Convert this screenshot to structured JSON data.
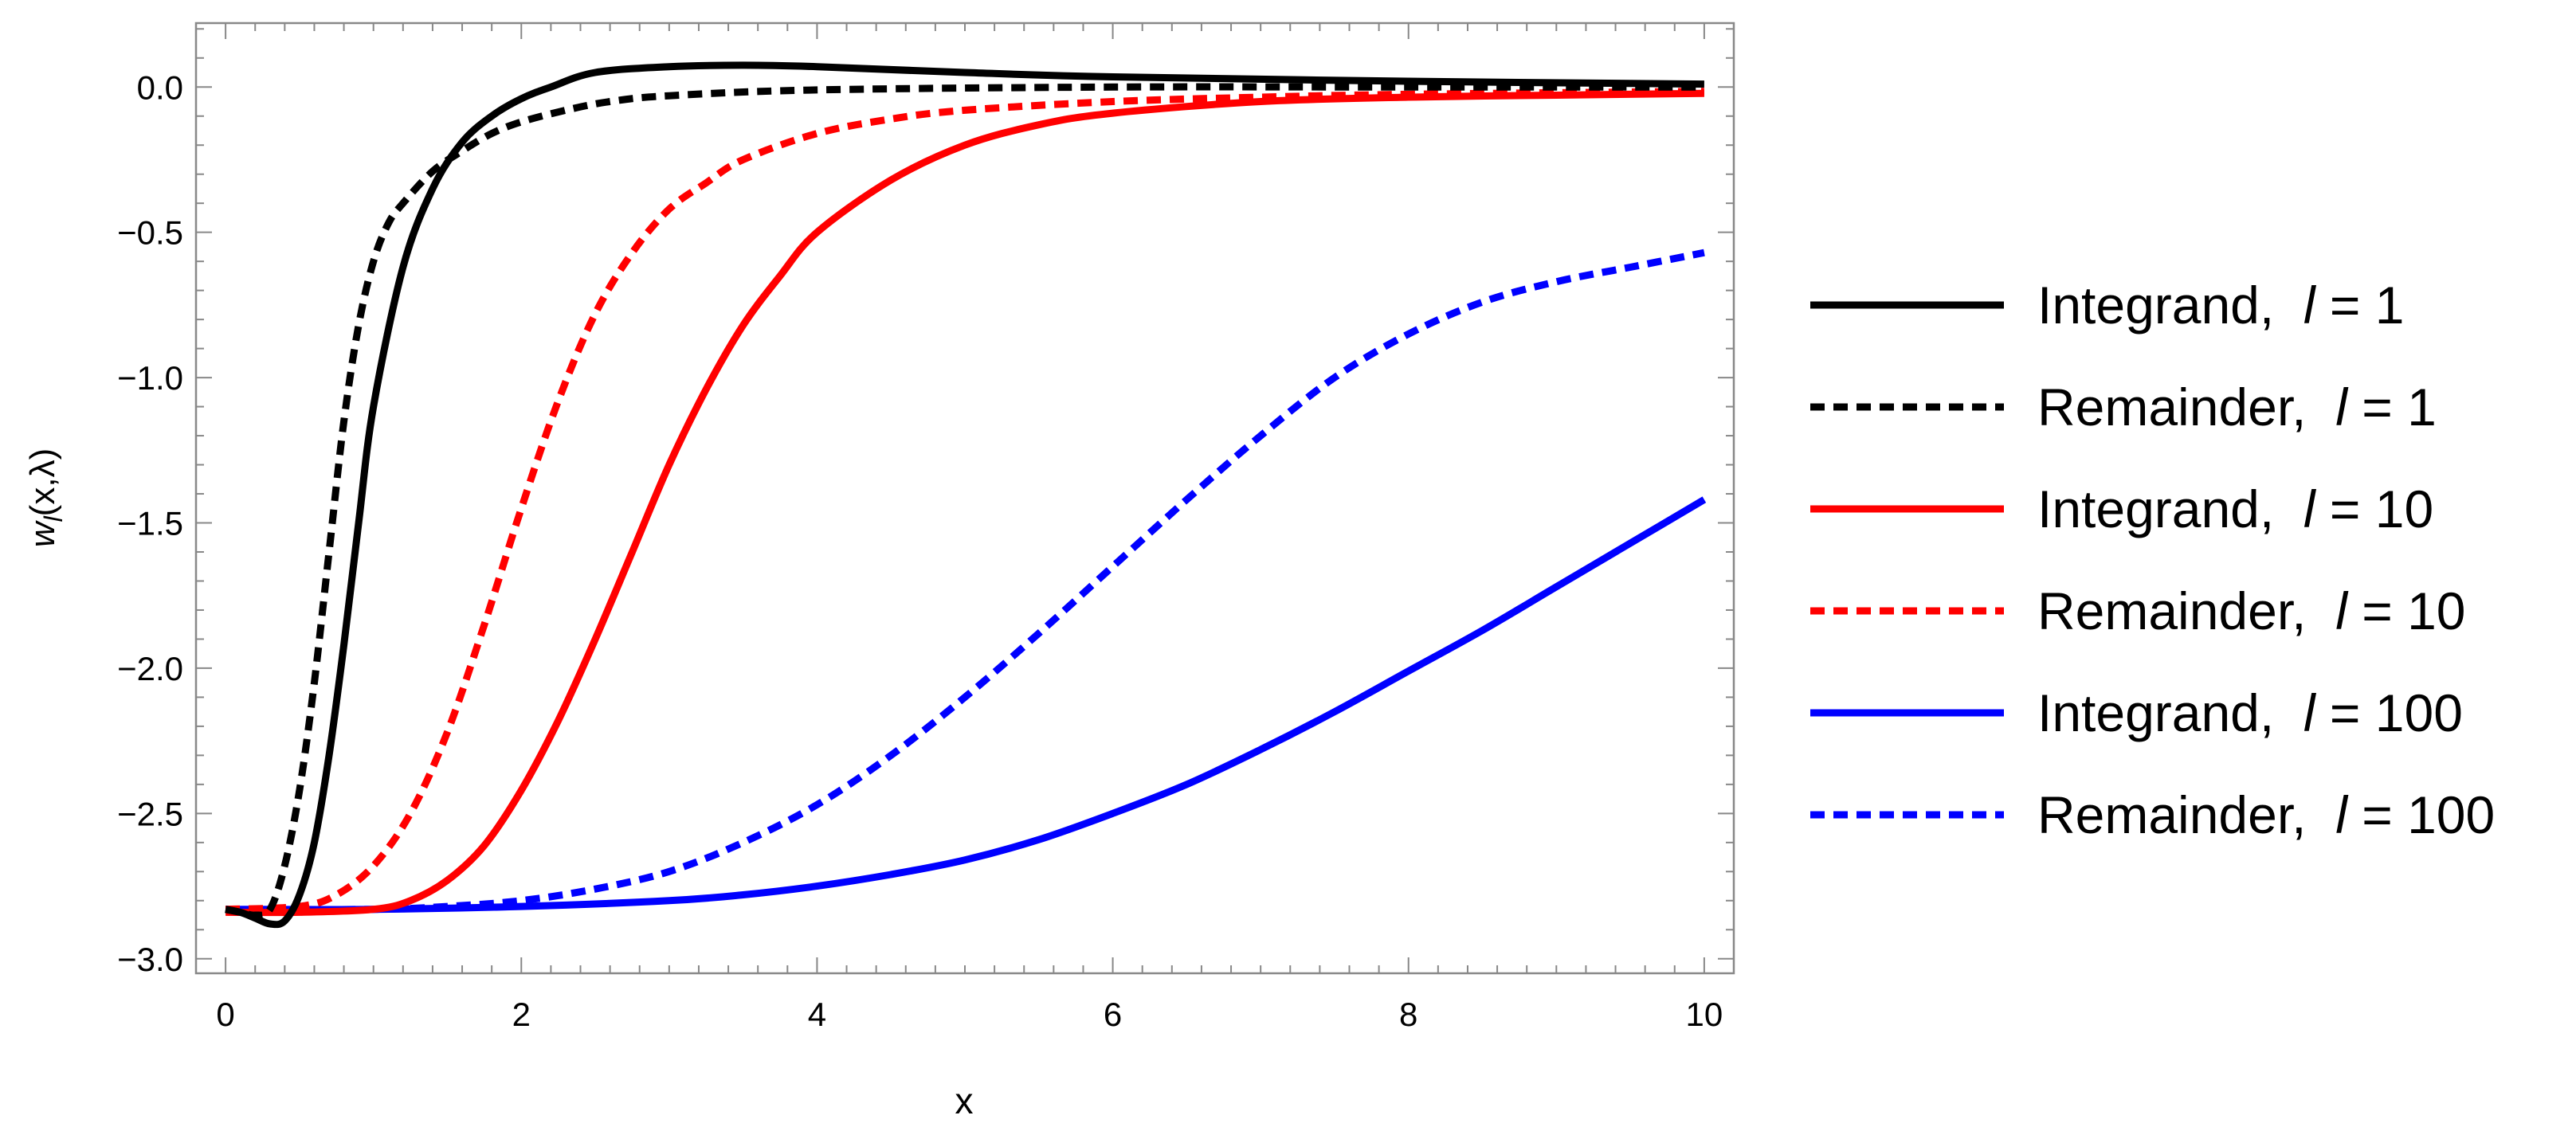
{
  "chart_data": {
    "type": "line",
    "title": "",
    "xlabel": "x",
    "ylabel_parts": {
      "w": "w",
      "sub": "l",
      "args": "(x,λ)"
    },
    "xlim": [
      -0.2,
      10.2
    ],
    "ylim": [
      -3.05,
      0.22
    ],
    "x_ticks": [
      0,
      2,
      4,
      6,
      8,
      10
    ],
    "x_tick_labels": [
      "0",
      "2",
      "4",
      "6",
      "8",
      "10"
    ],
    "y_ticks": [
      0.0,
      -0.5,
      -1.0,
      -1.5,
      -2.0,
      -2.5,
      -3.0
    ],
    "y_tick_labels": [
      "0.0",
      "−0.5",
      "−1.0",
      "−1.5",
      "−2.0",
      "−2.5",
      "−3.0"
    ],
    "grid": false,
    "legend_position": "right",
    "series": [
      {
        "name": "Integrand,",
        "l_value": "1",
        "color": "#000000",
        "dash": false,
        "x": [
          0,
          0.1,
          0.2,
          0.3,
          0.4,
          0.5,
          0.6,
          0.7,
          0.8,
          0.9,
          1.0,
          1.2,
          1.4,
          1.6,
          1.8,
          2.0,
          2.2,
          2.5,
          3.0,
          3.5,
          4.0,
          5.0,
          6.0,
          8.0,
          10.0
        ],
        "y": [
          -2.83,
          -2.84,
          -2.86,
          -2.88,
          -2.87,
          -2.78,
          -2.6,
          -2.3,
          -1.92,
          -1.5,
          -1.1,
          -0.62,
          -0.35,
          -0.19,
          -0.1,
          -0.04,
          0.0,
          0.05,
          0.07,
          0.075,
          0.07,
          0.05,
          0.035,
          0.02,
          0.01
        ]
      },
      {
        "name": "Remainder,",
        "l_value": "1",
        "color": "#000000",
        "dash": true,
        "x": [
          0,
          0.1,
          0.2,
          0.3,
          0.4,
          0.5,
          0.6,
          0.7,
          0.8,
          0.9,
          1.0,
          1.1,
          1.2,
          1.4,
          1.6,
          1.8,
          2.0,
          2.3,
          2.6,
          3.0,
          4.0,
          6.0,
          8.0,
          10.0
        ],
        "y": [
          -2.83,
          -2.84,
          -2.85,
          -2.83,
          -2.68,
          -2.42,
          -2.05,
          -1.6,
          -1.15,
          -0.82,
          -0.6,
          -0.47,
          -0.4,
          -0.29,
          -0.22,
          -0.16,
          -0.12,
          -0.08,
          -0.05,
          -0.03,
          -0.01,
          0.0,
          0.0,
          0.0
        ]
      },
      {
        "name": "Integrand,",
        "l_value": "10",
        "color": "#ff0000",
        "dash": false,
        "x": [
          0,
          0.5,
          1.0,
          1.25,
          1.5,
          1.75,
          2.0,
          2.25,
          2.5,
          2.75,
          3.0,
          3.25,
          3.5,
          3.75,
          4.0,
          4.5,
          5.0,
          5.5,
          6.0,
          7.0,
          8.0,
          9.0,
          10.0
        ],
        "y": [
          -2.84,
          -2.84,
          -2.83,
          -2.8,
          -2.73,
          -2.61,
          -2.42,
          -2.18,
          -1.9,
          -1.6,
          -1.3,
          -1.04,
          -0.82,
          -0.65,
          -0.5,
          -0.32,
          -0.2,
          -0.13,
          -0.09,
          -0.05,
          -0.035,
          -0.028,
          -0.022
        ]
      },
      {
        "name": "Remainder,",
        "l_value": "10",
        "color": "#ff0000",
        "dash": true,
        "x": [
          0,
          0.5,
          0.75,
          1.0,
          1.25,
          1.5,
          1.75,
          2.0,
          2.25,
          2.5,
          2.75,
          3.0,
          3.25,
          3.5,
          4.0,
          4.5,
          5.0,
          6.0,
          7.0,
          8.0,
          10.0
        ],
        "y": [
          -2.83,
          -2.82,
          -2.78,
          -2.68,
          -2.5,
          -2.22,
          -1.85,
          -1.45,
          -1.08,
          -0.78,
          -0.57,
          -0.42,
          -0.33,
          -0.25,
          -0.16,
          -0.11,
          -0.08,
          -0.05,
          -0.035,
          -0.025,
          -0.015
        ]
      },
      {
        "name": "Integrand,",
        "l_value": "100",
        "color": "#0000ff",
        "dash": false,
        "x": [
          0,
          1.0,
          2.0,
          3.0,
          3.5,
          4.0,
          4.5,
          5.0,
          5.5,
          6.0,
          6.5,
          7.0,
          7.5,
          8.0,
          8.5,
          9.0,
          9.5,
          10.0
        ],
        "y": [
          -2.83,
          -2.83,
          -2.82,
          -2.8,
          -2.78,
          -2.75,
          -2.71,
          -2.66,
          -2.59,
          -2.5,
          -2.4,
          -2.28,
          -2.15,
          -2.01,
          -1.87,
          -1.72,
          -1.57,
          -1.42
        ]
      },
      {
        "name": "Remainder,",
        "l_value": "100",
        "color": "#0000ff",
        "dash": true,
        "x": [
          0,
          1.0,
          1.5,
          2.0,
          2.5,
          3.0,
          3.5,
          4.0,
          4.5,
          5.0,
          5.5,
          6.0,
          6.5,
          7.0,
          7.5,
          8.0,
          8.5,
          9.0,
          9.5,
          10.0
        ],
        "y": [
          -2.83,
          -2.83,
          -2.82,
          -2.8,
          -2.76,
          -2.7,
          -2.6,
          -2.47,
          -2.3,
          -2.1,
          -1.88,
          -1.65,
          -1.42,
          -1.2,
          -1.0,
          -0.85,
          -0.74,
          -0.67,
          -0.62,
          -0.57
        ]
      }
    ]
  }
}
